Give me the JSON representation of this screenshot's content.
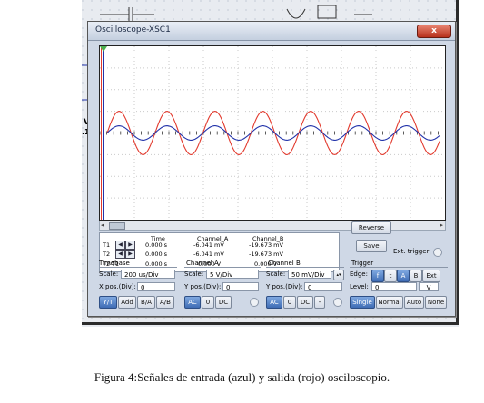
{
  "window": {
    "title": "Oscilloscope-XSC1",
    "close": "x"
  },
  "schematic_left_labels": [
    "V",
    ".1"
  ],
  "measurements": {
    "headers": [
      "Time",
      "Channel_A",
      "Channel_B"
    ],
    "rows": [
      {
        "label": "T1",
        "time": "0.000 s",
        "a": "-6.041 mV",
        "b": "-19.673 mV"
      },
      {
        "label": "T2",
        "time": "0.000 s",
        "a": "-6.041 mV",
        "b": "-19.673 mV"
      },
      {
        "label": "T2-T1",
        "time": "0.000 s",
        "a": "0.000 V",
        "b": "0.000 V"
      }
    ]
  },
  "buttons": {
    "reverse": "Reverse",
    "save": "Save",
    "ext_trigger": "Ext. trigger"
  },
  "timebase": {
    "group": "Timebase",
    "scale_label": "Scale:",
    "scale_value": "200 us/Div",
    "xpos_label": "X pos.(Div):",
    "xpos_value": "0",
    "modes": [
      "Y/T",
      "Add",
      "B/A",
      "A/B"
    ]
  },
  "channel_a": {
    "group": "Channel A",
    "scale_label": "Scale:",
    "scale_value": "5 V/Div",
    "ypos_label": "Y pos.(Div):",
    "ypos_value": "0",
    "coupling": [
      "AC",
      "0",
      "DC"
    ]
  },
  "channel_b": {
    "group": "Channel B",
    "scale_label": "Scale:",
    "scale_value": "50 mV/Div",
    "ypos_label": "Y pos.(Div):",
    "ypos_value": "0",
    "coupling": [
      "AC",
      "0",
      "DC",
      "-"
    ]
  },
  "trigger": {
    "group": "Trigger",
    "edge_label": "Edge:",
    "edge_buttons": [
      "f",
      "t",
      "A",
      "B",
      "Ext"
    ],
    "level_label": "Level:",
    "level_value": "0",
    "level_unit": "V",
    "modes": [
      "Single",
      "Normal",
      "Auto",
      "None"
    ]
  },
  "traces": {
    "input_color": "#2233aa",
    "output_color": "#e23a2e",
    "input_amplitude_div": 0.33,
    "output_amplitude_div": 1.0,
    "cycles_visible": 6.9
  },
  "caption": "Figura 4:Señales de entrada (azul) y salida (rojo) osciloscopio."
}
